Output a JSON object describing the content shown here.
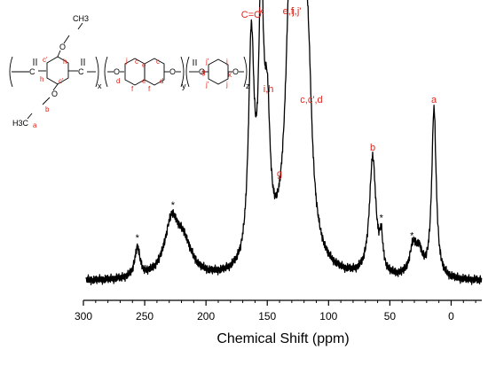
{
  "chart_data": {
    "type": "line",
    "title": "",
    "xlabel": "Chemical Shift (ppm)",
    "ylabel": "",
    "xlim": [
      300,
      -25
    ],
    "x_reversed": true,
    "xticks": [
      300,
      250,
      200,
      150,
      100,
      50,
      0
    ],
    "y_axis_shown": false,
    "grid": false,
    "legend": "none",
    "colors": {
      "line": "#000000",
      "annotation": "#e0241b"
    },
    "baseline": 0.14,
    "peaks": [
      {
        "x": 256,
        "height": 0.1,
        "width": 2.5
      },
      {
        "x": 228,
        "height": 0.18,
        "width": 7
      },
      {
        "x": 218,
        "height": 0.1,
        "width": 8
      },
      {
        "x": 163,
        "height": 0.74,
        "width": 2.8
      },
      {
        "x": 155,
        "height": 0.86,
        "width": 2.4
      },
      {
        "x": 150,
        "height": 0.42,
        "width": 2.8
      },
      {
        "x": 131,
        "height": 0.72,
        "width": 4.5
      },
      {
        "x": 125,
        "height": 0.86,
        "width": 5
      },
      {
        "x": 121,
        "height": 0.68,
        "width": 4.5
      },
      {
        "x": 116,
        "height": 0.26,
        "width": 3
      },
      {
        "x": 64,
        "height": 0.4,
        "width": 3.2
      },
      {
        "x": 57,
        "height": 0.1,
        "width": 1.6
      },
      {
        "x": 31,
        "height": 0.1,
        "width": 3.5
      },
      {
        "x": 26,
        "height": 0.07,
        "width": 3
      },
      {
        "x": 14,
        "height": 0.57,
        "width": 2.2
      }
    ],
    "annotations": [
      {
        "text": "*",
        "x": 256,
        "color": "black"
      },
      {
        "text": "*",
        "x": 227,
        "color": "black"
      },
      {
        "text": "C=O",
        "x": 163,
        "color": "red"
      },
      {
        "text": "k",
        "x": 155,
        "color": "red"
      },
      {
        "text": "i,h",
        "x": 149,
        "color": "red"
      },
      {
        "text": "g",
        "x": 140,
        "color": "red"
      },
      {
        "text": "e,f",
        "x": 133,
        "color": "red"
      },
      {
        "text": "j,j'",
        "x": 126,
        "color": "red"
      },
      {
        "text": "c,c',d",
        "x": 114,
        "color": "red"
      },
      {
        "text": "b",
        "x": 64,
        "color": "red"
      },
      {
        "text": "*",
        "x": 57,
        "color": "black"
      },
      {
        "text": "*",
        "x": 32,
        "color": "black"
      },
      {
        "text": "a",
        "x": 14,
        "color": "red"
      }
    ]
  },
  "structure": {
    "subscripts": [
      "x",
      "y",
      "z"
    ],
    "black_labels": [
      "C",
      "C",
      "O",
      "O",
      "O",
      "O",
      "O",
      "O",
      "H3C",
      "CH3"
    ],
    "red_labels": [
      "c'",
      "h",
      "c'",
      "h",
      "b",
      "a",
      "j",
      "c",
      "e",
      "c",
      "d",
      "f",
      "e",
      "f",
      "d",
      "j'",
      "j",
      "g",
      "k",
      "j'",
      "j"
    ]
  }
}
